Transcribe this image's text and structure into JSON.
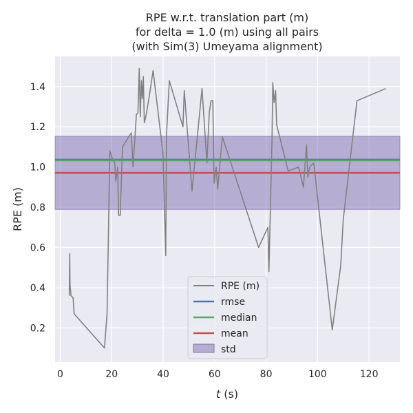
{
  "chart_data": {
    "type": "line",
    "title_lines": [
      "RPE w.r.t. translation part (m)",
      "for delta = 1.0 (m) using all pairs",
      "(with Sim(3) Umeyama alignment)"
    ],
    "xlabel_italic": "t",
    "xlabel_rest": " (s)",
    "ylabel": "RPE (m)",
    "xlim": [
      -2,
      132
    ],
    "ylim": [
      0.03,
      1.55
    ],
    "xticks": [
      0,
      20,
      40,
      60,
      80,
      100,
      120
    ],
    "yticks": [
      0.2,
      0.4,
      0.6,
      0.8,
      1.0,
      1.2,
      1.4
    ],
    "ytick_labels": [
      "0.2",
      "0.4",
      "0.6",
      "0.8",
      "1.0",
      "1.2",
      "1.4"
    ],
    "grid": true,
    "legend_position": "lower-center",
    "series": [
      {
        "name": "RPE (m)",
        "color": "#808080",
        "x": [
          3.5,
          3.7,
          3.8,
          4.0,
          4.2,
          5.0,
          5.4,
          17.2,
          18.2,
          19.3,
          20.0,
          21.2,
          21.6,
          22.3,
          22.7,
          23.3,
          24.2,
          27.6,
          28.3,
          29.6,
          30.2,
          30.7,
          31.1,
          31.5,
          31.9,
          32.3,
          32.7,
          33.4,
          34.6,
          36.1,
          39.9,
          41.0,
          41.3,
          42.4,
          47.7,
          48.2,
          51.2,
          55.1,
          57.0,
          57.9,
          58.6,
          59.3,
          59.8,
          60.6,
          61.2,
          63.0,
          77.1,
          80.7,
          81.1,
          82.3,
          82.6,
          83.1,
          83.7,
          84.1,
          88.6,
          92.6,
          94.5,
          95.7,
          96.2,
          96.9,
          98.5,
          105.7,
          109.0,
          110.0,
          115.3,
          126.5
        ],
        "y": [
          0.36,
          0.57,
          0.41,
          0.39,
          0.36,
          0.35,
          0.27,
          0.1,
          0.27,
          1.08,
          1.05,
          1.02,
          0.93,
          1.0,
          0.76,
          0.76,
          1.1,
          1.17,
          1.0,
          1.26,
          1.27,
          1.49,
          1.25,
          1.43,
          1.34,
          1.45,
          1.22,
          1.26,
          1.35,
          1.48,
          1.07,
          0.56,
          1.16,
          1.43,
          1.2,
          1.38,
          0.88,
          1.39,
          1.02,
          1.27,
          1.33,
          1.33,
          0.92,
          1.0,
          0.89,
          1.15,
          0.6,
          0.7,
          0.48,
          1.14,
          1.42,
          1.32,
          1.38,
          1.21,
          0.98,
          1.0,
          0.9,
          1.11,
          0.95,
          1.0,
          1.02,
          0.19,
          0.51,
          0.74,
          1.33,
          1.39
        ]
      }
    ],
    "stats": [
      {
        "name": "rmse",
        "color": "#4c72b0",
        "value": 1.037
      },
      {
        "name": "median",
        "color": "#55a868",
        "value": 1.033
      },
      {
        "name": "mean",
        "color": "#c44e52",
        "value": 0.971
      }
    ],
    "std_band": {
      "name": "std",
      "color": "#8172b2",
      "low": 0.789,
      "high": 1.153
    },
    "plot_bg": "#eaeaf2",
    "grid_color": "#ffffff"
  }
}
